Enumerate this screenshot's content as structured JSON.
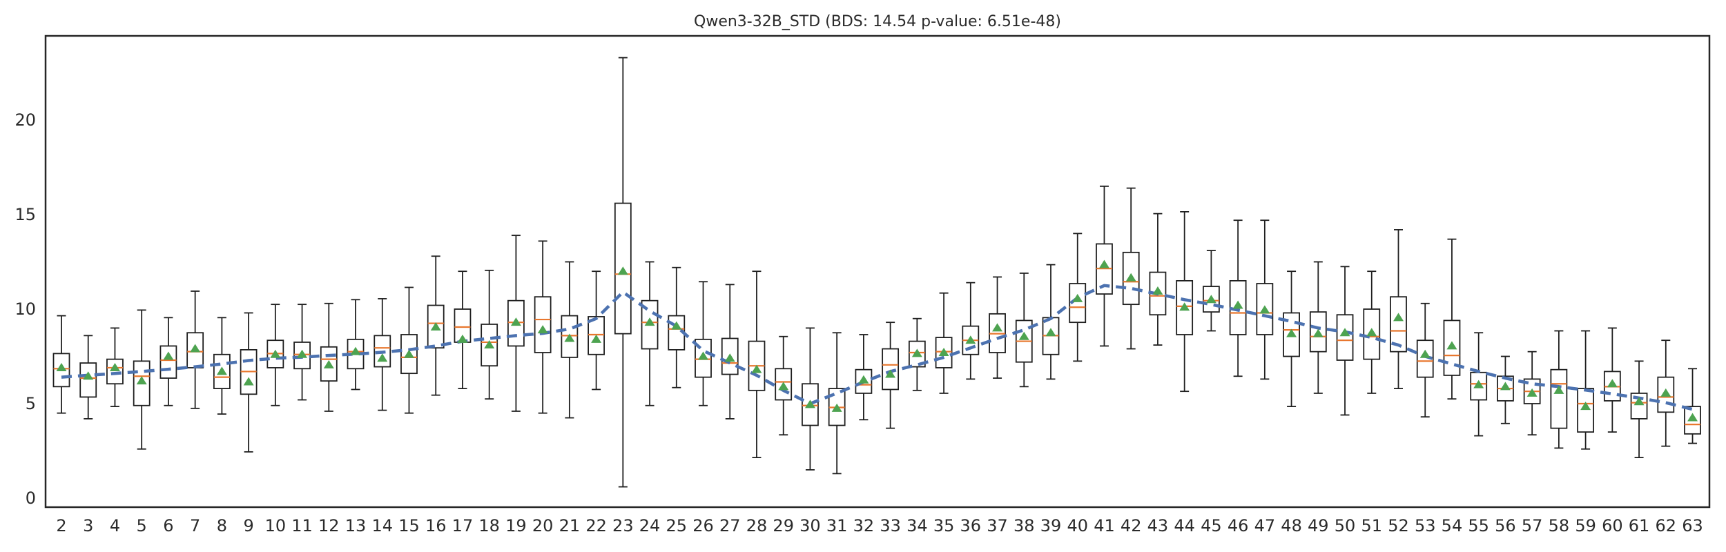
{
  "chart_data": {
    "type": "boxplot",
    "title": "Qwen3-32B_STD (BDS: 14.54 p-value: 6.51e-48)",
    "xlabel": "",
    "ylabel": "",
    "legend": "none",
    "grid": false,
    "ylim": [
      -0.5,
      24.5
    ],
    "yticks": [
      0,
      5,
      10,
      15,
      20
    ],
    "categories": [
      2,
      3,
      4,
      5,
      6,
      7,
      8,
      9,
      10,
      11,
      12,
      13,
      14,
      15,
      16,
      17,
      18,
      19,
      20,
      21,
      22,
      23,
      24,
      25,
      26,
      27,
      28,
      29,
      30,
      31,
      32,
      33,
      34,
      35,
      36,
      37,
      38,
      39,
      40,
      41,
      42,
      43,
      44,
      45,
      46,
      47,
      48,
      49,
      50,
      51,
      52,
      53,
      54,
      55,
      56,
      57,
      58,
      59,
      60,
      61,
      62,
      63
    ],
    "box_format": [
      "whislo",
      "q1",
      "med",
      "q3",
      "whishi",
      "mean"
    ],
    "boxes": [
      [
        4.5,
        5.9,
        6.85,
        7.65,
        9.65,
        6.9
      ],
      [
        4.2,
        5.35,
        6.35,
        7.15,
        8.6,
        6.45
      ],
      [
        4.85,
        6.05,
        6.9,
        7.35,
        9.0,
        6.9
      ],
      [
        2.6,
        4.9,
        6.45,
        7.25,
        9.95,
        6.2
      ],
      [
        4.9,
        6.35,
        7.3,
        8.05,
        9.55,
        7.5
      ],
      [
        4.75,
        6.9,
        7.75,
        8.75,
        10.95,
        7.9
      ],
      [
        4.45,
        5.8,
        6.4,
        7.6,
        9.55,
        6.7
      ],
      [
        2.45,
        5.5,
        6.7,
        7.85,
        9.8,
        6.15
      ],
      [
        4.9,
        6.9,
        7.65,
        8.35,
        10.25,
        7.6
      ],
      [
        5.2,
        6.85,
        7.6,
        8.25,
        10.25,
        7.6
      ],
      [
        4.6,
        6.2,
        7.35,
        8.0,
        10.3,
        7.05
      ],
      [
        5.75,
        6.85,
        7.75,
        8.4,
        10.5,
        7.75
      ],
      [
        4.65,
        6.95,
        7.95,
        8.6,
        10.55,
        7.4
      ],
      [
        4.5,
        6.6,
        7.45,
        8.65,
        11.15,
        7.6
      ],
      [
        5.45,
        7.95,
        9.25,
        10.2,
        12.8,
        9.05
      ],
      [
        5.8,
        8.25,
        9.05,
        10.0,
        12.0,
        8.4
      ],
      [
        5.25,
        7.0,
        8.25,
        9.2,
        12.05,
        8.1
      ],
      [
        4.6,
        8.05,
        9.3,
        10.45,
        13.9,
        9.3
      ],
      [
        4.5,
        7.7,
        9.45,
        10.65,
        13.6,
        8.9
      ],
      [
        4.25,
        7.45,
        8.6,
        9.65,
        12.5,
        8.45
      ],
      [
        5.75,
        7.6,
        8.65,
        9.6,
        12.0,
        8.4
      ],
      [
        0.6,
        8.7,
        11.85,
        15.6,
        23.3,
        12.0
      ],
      [
        4.9,
        7.9,
        9.3,
        10.45,
        12.5,
        9.3
      ],
      [
        5.85,
        7.85,
        8.95,
        9.65,
        12.2,
        9.1
      ],
      [
        4.9,
        6.4,
        7.35,
        8.4,
        11.45,
        7.5
      ],
      [
        4.2,
        6.55,
        7.15,
        8.45,
        11.3,
        7.4
      ],
      [
        2.15,
        5.7,
        7.0,
        8.3,
        12.0,
        6.8
      ],
      [
        3.35,
        5.2,
        6.15,
        6.85,
        8.55,
        5.9
      ],
      [
        1.5,
        3.85,
        4.9,
        6.05,
        9.0,
        4.95
      ],
      [
        1.3,
        3.85,
        4.8,
        5.8,
        8.75,
        4.75
      ],
      [
        4.15,
        5.55,
        6.0,
        6.8,
        8.65,
        6.25
      ],
      [
        3.7,
        5.75,
        7.05,
        7.9,
        9.3,
        6.55
      ],
      [
        5.7,
        6.95,
        7.7,
        8.3,
        9.5,
        7.65
      ],
      [
        5.55,
        6.9,
        7.75,
        8.5,
        10.85,
        7.7
      ],
      [
        6.3,
        7.6,
        8.35,
        9.1,
        11.4,
        8.35
      ],
      [
        6.35,
        7.7,
        8.7,
        9.75,
        11.7,
        9.0
      ],
      [
        5.9,
        7.2,
        8.3,
        9.4,
        11.9,
        8.55
      ],
      [
        6.3,
        7.6,
        8.6,
        9.55,
        12.35,
        8.75
      ],
      [
        7.25,
        9.3,
        10.1,
        11.35,
        14.0,
        10.55
      ],
      [
        8.05,
        10.8,
        12.15,
        13.45,
        16.5,
        12.35
      ],
      [
        7.9,
        10.25,
        11.45,
        13.0,
        16.4,
        11.65
      ],
      [
        8.1,
        9.7,
        10.7,
        11.95,
        15.05,
        10.95
      ],
      [
        5.65,
        8.65,
        10.15,
        11.5,
        15.15,
        10.1
      ],
      [
        8.85,
        9.85,
        10.45,
        11.2,
        13.1,
        10.5
      ],
      [
        6.45,
        8.65,
        9.8,
        11.5,
        14.7,
        10.2
      ],
      [
        6.3,
        8.65,
        9.8,
        11.35,
        14.7,
        9.95
      ],
      [
        4.85,
        7.5,
        8.9,
        9.8,
        12.0,
        8.7
      ],
      [
        5.55,
        7.75,
        8.55,
        9.85,
        12.5,
        8.7
      ],
      [
        4.4,
        7.3,
        8.35,
        9.7,
        12.25,
        8.75
      ],
      [
        5.55,
        7.35,
        8.55,
        10.0,
        12.0,
        8.75
      ],
      [
        5.8,
        7.75,
        8.85,
        10.65,
        14.2,
        9.55
      ],
      [
        4.3,
        6.4,
        7.25,
        8.35,
        10.3,
        7.6
      ],
      [
        5.25,
        6.5,
        7.55,
        9.4,
        13.7,
        8.05
      ],
      [
        3.3,
        5.2,
        6.05,
        6.65,
        8.75,
        6.0
      ],
      [
        3.95,
        5.15,
        5.8,
        6.45,
        7.5,
        5.9
      ],
      [
        3.35,
        5.0,
        5.65,
        6.3,
        7.75,
        5.55
      ],
      [
        2.65,
        3.7,
        6.05,
        6.8,
        8.85,
        5.7
      ],
      [
        2.6,
        3.5,
        5.0,
        5.8,
        8.85,
        4.85
      ],
      [
        3.5,
        5.15,
        5.9,
        6.7,
        9.0,
        6.05
      ],
      [
        2.15,
        4.2,
        5.05,
        5.55,
        7.25,
        5.1
      ],
      [
        2.75,
        4.55,
        5.35,
        6.4,
        8.35,
        5.55
      ],
      [
        2.9,
        3.4,
        3.9,
        4.85,
        6.85,
        4.25
      ]
    ],
    "trend_line": [
      6.4,
      6.5,
      6.6,
      6.7,
      6.82,
      6.95,
      7.1,
      7.28,
      7.4,
      7.46,
      7.55,
      7.62,
      7.72,
      7.85,
      8.05,
      8.3,
      8.45,
      8.6,
      8.72,
      8.95,
      9.5,
      10.9,
      9.9,
      9.1,
      7.8,
      7.15,
      6.5,
      5.7,
      5.0,
      5.55,
      6.15,
      6.7,
      7.05,
      7.45,
      7.95,
      8.45,
      8.9,
      9.5,
      10.6,
      11.25,
      11.1,
      10.8,
      10.5,
      10.25,
      9.95,
      9.65,
      9.35,
      9.0,
      8.8,
      8.5,
      8.1,
      7.5,
      7.1,
      6.7,
      6.35,
      6.05,
      5.9,
      5.72,
      5.52,
      5.3,
      5.05,
      4.7
    ],
    "colors": {
      "background": "#ffffff",
      "frame": "#262626",
      "box_edge": "#1f1f1f",
      "box_fill": "#ffffff",
      "median": "#e8772e",
      "mean_marker": "#4da350",
      "trend_line": "#4c72b0",
      "text": "#2b2b2b"
    }
  }
}
